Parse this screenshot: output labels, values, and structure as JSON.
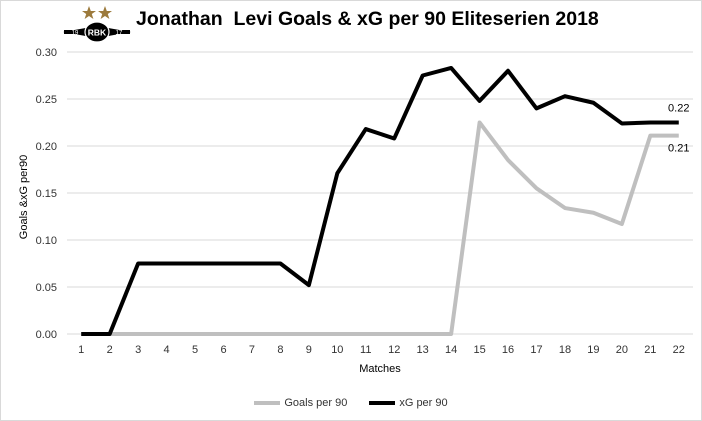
{
  "title": "Jonathan  Levi Goals & xG per 90 Eliteserien 2018",
  "logo": {
    "text": "RBK",
    "left_digits": "19",
    "right_digits": "17",
    "star_color": "#9c7a3c"
  },
  "chart_data": {
    "type": "line",
    "title": "Jonathan  Levi Goals & xG per 90 Eliteserien 2018",
    "xlabel": "Matches",
    "ylabel": "Goals &xG per90",
    "x": [
      1,
      2,
      3,
      4,
      5,
      6,
      7,
      8,
      9,
      10,
      11,
      12,
      13,
      14,
      15,
      16,
      17,
      18,
      19,
      20,
      21,
      22
    ],
    "ylim": [
      0,
      0.3
    ],
    "yticks": [
      "0.00",
      "0.05",
      "0.10",
      "0.15",
      "0.20",
      "0.25",
      "0.30"
    ],
    "grid": true,
    "legend_position": "bottom",
    "series": [
      {
        "name": "Goals per 90",
        "color": "#bfbfbf",
        "values": [
          0,
          0,
          0,
          0,
          0,
          0,
          0,
          0,
          0,
          0,
          0,
          0,
          0,
          0,
          0.225,
          0.185,
          0.155,
          0.134,
          0.129,
          0.117,
          0.211,
          0.211
        ],
        "end_label": "0.21"
      },
      {
        "name": "xG per 90",
        "color": "#000000",
        "values": [
          0,
          0,
          0.075,
          0.075,
          0.075,
          0.075,
          0.075,
          0.075,
          0.052,
          0.171,
          0.218,
          0.208,
          0.275,
          0.283,
          0.248,
          0.28,
          0.24,
          0.253,
          0.246,
          0.224,
          0.225,
          0.225
        ],
        "end_label": "0.22"
      }
    ]
  }
}
